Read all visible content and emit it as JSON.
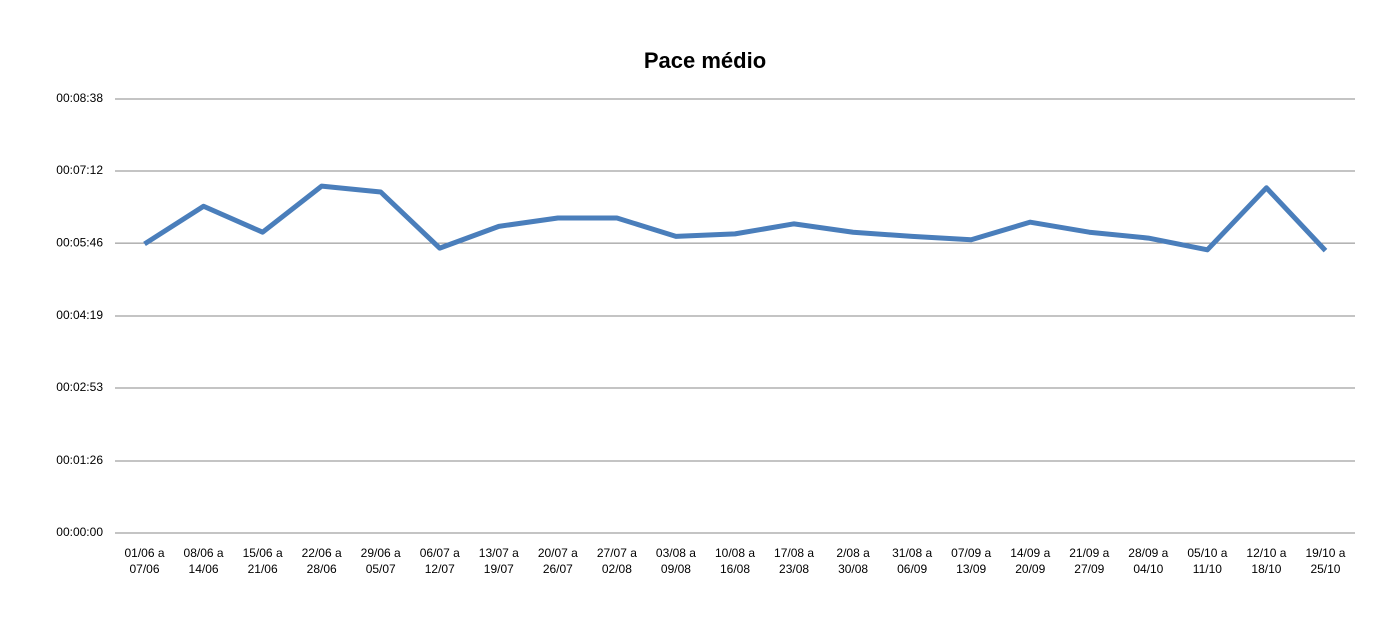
{
  "chart_data": {
    "type": "line",
    "title": "Pace médio",
    "categories": [
      "01/06 a 07/06",
      "08/06 a 14/06",
      "15/06 a 21/06",
      "22/06 a 28/06",
      "29/06 a 05/07",
      "06/07 a 12/07",
      "13/07 a 19/07",
      "20/07 a 26/07",
      "27/07 a 02/08",
      "03/08 a 09/08",
      "10/08 a 16/08",
      "17/08 a 23/08",
      "2/08 a 30/08",
      "31/08 a 06/09",
      "07/09 a 13/09",
      "14/09 a 20/09",
      "21/09 a 27/09",
      "28/09 a 04/10",
      "05/10 a 11/10",
      "12/10 a 18/10",
      "19/10 a 25/10"
    ],
    "series": [
      {
        "name": "Pace médio",
        "color": "#4a7ebb",
        "values": [
          345,
          390,
          359,
          414,
          407,
          340,
          366,
          376,
          376,
          354,
          357,
          369,
          359,
          354,
          350,
          371,
          359,
          352,
          338,
          412,
          337
        ]
      }
    ],
    "ylim": [
      0,
      518
    ],
    "yticks": [
      {
        "value": 0,
        "label": "00:00:00"
      },
      {
        "value": 86,
        "label": "00:01:26"
      },
      {
        "value": 173,
        "label": "00:02:53"
      },
      {
        "value": 259,
        "label": "00:04:19"
      },
      {
        "value": 346,
        "label": "00:05:46"
      },
      {
        "value": 432,
        "label": "00:07:12"
      },
      {
        "value": 518,
        "label": "00:08:38"
      }
    ],
    "grid": true
  }
}
